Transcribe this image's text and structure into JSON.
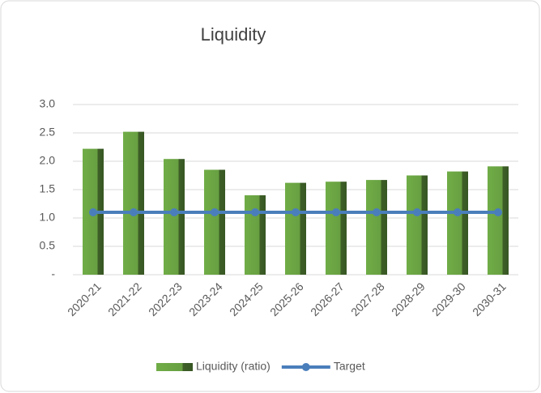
{
  "chart_data": {
    "type": "bar",
    "title": "Liquidity",
    "categories": [
      "2020-21",
      "2021-22",
      "2022-23",
      "2023-24",
      "2024-25",
      "2025-26",
      "2026-27",
      "2027-28",
      "2028-29",
      "2029-30",
      "2030-31"
    ],
    "series": [
      {
        "name": "Liquidity (ratio)",
        "type": "bar",
        "color": "#70ad47",
        "values": [
          2.22,
          2.52,
          2.04,
          1.85,
          1.4,
          1.62,
          1.64,
          1.67,
          1.75,
          1.82,
          1.91
        ]
      },
      {
        "name": "Target",
        "type": "line",
        "color": "#4a7ebb",
        "values": [
          1.1,
          1.1,
          1.1,
          1.1,
          1.1,
          1.1,
          1.1,
          1.1,
          1.1,
          1.1,
          1.1
        ]
      }
    ],
    "ylim": [
      0,
      3
    ],
    "yticks": [
      {
        "value": 0,
        "label": "-"
      },
      0.5,
      {
        "value": 1,
        "label": "1.0"
      },
      1.5,
      {
        "value": 2,
        "label": "2.0"
      },
      2.5,
      {
        "value": 3,
        "label": "3.0"
      }
    ],
    "grid": true,
    "legend": "bottom"
  }
}
